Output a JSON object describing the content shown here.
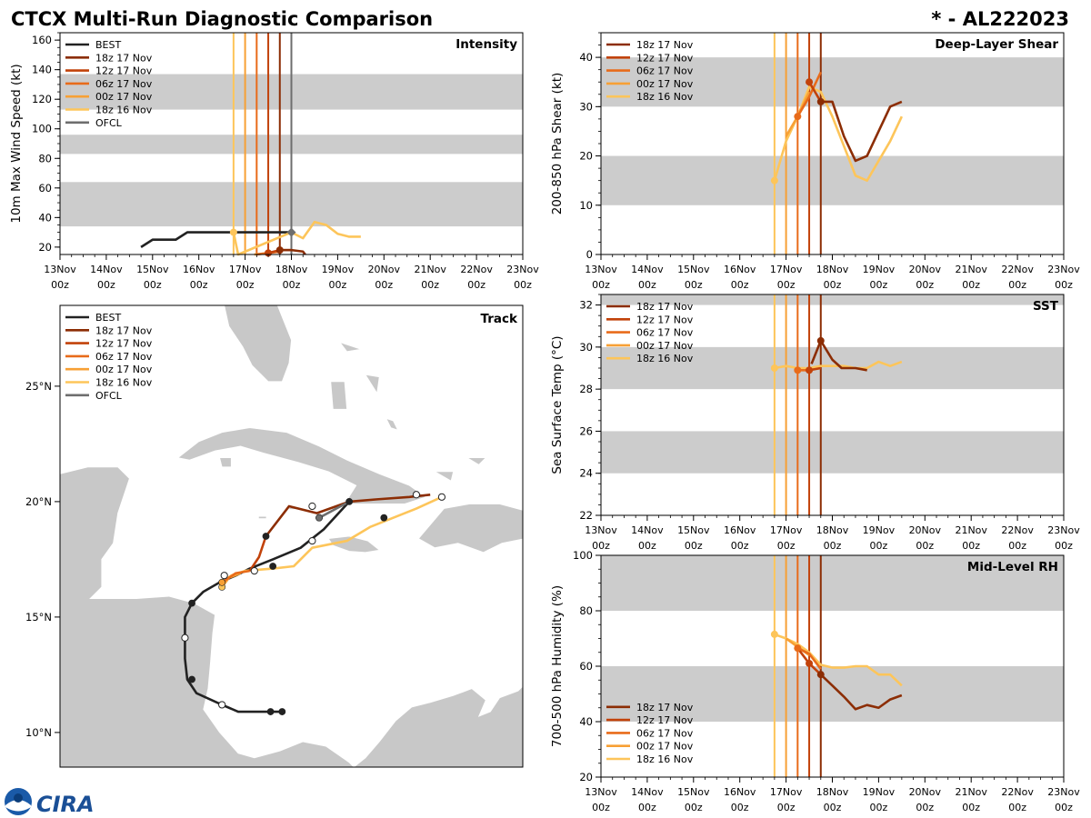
{
  "header": {
    "title": "CTCX Multi-Run Diagnostic Comparison",
    "storm_id": "* - AL222023"
  },
  "logo": {
    "text": "CIRA"
  },
  "colors": {
    "BEST": "#222222",
    "OFCL": "#6e6e6e",
    "18z 17 Nov": "#8c2d04",
    "12z 17 Nov": "#c2420a",
    "06z 17 Nov": "#e86b1a",
    "00z 17 Nov": "#f7a035",
    "18z 16 Nov": "#fdc55a",
    "band": "#cccccc"
  },
  "time_axis": {
    "range": [
      0,
      10
    ],
    "ticks": [
      {
        "v": 0,
        "l1": "13Nov",
        "l2": "00z"
      },
      {
        "v": 1,
        "l1": "14Nov",
        "l2": "00z"
      },
      {
        "v": 2,
        "l1": "15Nov",
        "l2": "00z"
      },
      {
        "v": 3,
        "l1": "16Nov",
        "l2": "00z"
      },
      {
        "v": 4,
        "l1": "17Nov",
        "l2": "00z"
      },
      {
        "v": 5,
        "l1": "18Nov",
        "l2": "00z"
      },
      {
        "v": 6,
        "l1": "19Nov",
        "l2": "00z"
      },
      {
        "v": 7,
        "l1": "20Nov",
        "l2": "00z"
      },
      {
        "v": 8,
        "l1": "21Nov",
        "l2": "00z"
      },
      {
        "v": 9,
        "l1": "22Nov",
        "l2": "00z"
      },
      {
        "v": 10,
        "l1": "23Nov",
        "l2": "00z"
      }
    ]
  },
  "chart_data": [
    {
      "id": "intensity",
      "type": "line",
      "title": "Intensity",
      "xlabel": "",
      "ylabel": "10m Max Wind Speed (kt)",
      "ylim": [
        15,
        165
      ],
      "yticks": [
        20,
        40,
        60,
        80,
        100,
        120,
        140,
        160
      ],
      "bands": [
        [
          34,
          64
        ],
        [
          83,
          96
        ],
        [
          113,
          137
        ]
      ],
      "legend": {
        "position": "top-left",
        "entries": [
          "BEST",
          "18z 17 Nov",
          "12z 17 Nov",
          "06z 17 Nov",
          "00z 17 Nov",
          "18z 16 Nov",
          "OFCL"
        ]
      },
      "vlines": [
        {
          "series": "18z 16 Nov",
          "x": 3.75
        },
        {
          "series": "00z 17 Nov",
          "x": 4.0
        },
        {
          "series": "06z 17 Nov",
          "x": 4.25
        },
        {
          "series": "12z 17 Nov",
          "x": 4.5
        },
        {
          "series": "18z 17 Nov",
          "x": 4.75
        },
        {
          "series": "OFCL",
          "x": 5.0
        }
      ],
      "series": [
        {
          "name": "BEST",
          "x": [
            1.75,
            2.0,
            2.25,
            2.5,
            2.75,
            3.0,
            3.25,
            3.5,
            3.75,
            4.0,
            4.25,
            4.5,
            4.75,
            5.0
          ],
          "y": [
            20,
            25,
            25,
            25,
            30,
            30,
            30,
            30,
            30,
            30,
            30,
            30,
            30,
            30
          ]
        },
        {
          "name": "18z 16 Nov",
          "x": [
            3.75,
            3.85,
            5.0,
            5.25,
            5.5,
            5.75,
            6.0,
            6.25,
            6.5
          ],
          "y": [
            30,
            15,
            30,
            26,
            37,
            35,
            29,
            27,
            27
          ]
        },
        {
          "name": "00z 17 Nov",
          "x": [
            4.2,
            4.5
          ],
          "y": [
            15,
            16
          ]
        },
        {
          "name": "06z 17 Nov",
          "x": [
            4.25,
            4.5,
            4.75
          ],
          "y": [
            15,
            16,
            17
          ]
        },
        {
          "name": "12z 17 Nov",
          "x": [
            4.5,
            4.75,
            5.0
          ],
          "y": [
            16,
            18,
            18
          ]
        },
        {
          "name": "18z 17 Nov",
          "x": [
            4.75,
            5.0,
            5.25,
            5.3
          ],
          "y": [
            18,
            18,
            17,
            15
          ]
        },
        {
          "name": "OFCL",
          "x": [
            5.0
          ],
          "y": [
            30
          ]
        }
      ],
      "markers": [
        {
          "series": "18z 16 Nov",
          "x": 3.75,
          "y": 30,
          "style": "filled"
        },
        {
          "series": "12z 17 Nov",
          "x": 4.5,
          "y": 16,
          "style": "filled"
        },
        {
          "series": "18z 17 Nov",
          "x": 4.75,
          "y": 18,
          "style": "filled"
        },
        {
          "series": "OFCL",
          "x": 5.0,
          "y": 30,
          "style": "diamond"
        }
      ]
    },
    {
      "id": "shear",
      "type": "line",
      "title": "Deep-Layer Shear",
      "xlabel": "",
      "ylabel": "200-850 hPa Shear (kt)",
      "ylim": [
        0,
        45
      ],
      "yticks": [
        0,
        10,
        20,
        30,
        40
      ],
      "bands": [
        [
          10,
          20
        ],
        [
          30,
          40
        ]
      ],
      "legend": {
        "position": "top-left",
        "entries": [
          "18z 17 Nov",
          "12z 17 Nov",
          "06z 17 Nov",
          "00z 17 Nov",
          "18z 16 Nov"
        ]
      },
      "vlines": [
        {
          "series": "18z 16 Nov",
          "x": 3.75
        },
        {
          "series": "00z 17 Nov",
          "x": 4.0
        },
        {
          "series": "06z 17 Nov",
          "x": 4.25
        },
        {
          "series": "12z 17 Nov",
          "x": 4.5
        },
        {
          "series": "18z 17 Nov",
          "x": 4.75
        }
      ],
      "series": [
        {
          "name": "18z 16 Nov",
          "x": [
            3.75,
            4.0,
            4.25,
            4.5,
            4.75,
            5.0,
            5.25,
            5.5,
            5.75,
            6.0,
            6.25,
            6.5
          ],
          "y": [
            15,
            23,
            28,
            34,
            33,
            28,
            22,
            16,
            15,
            19,
            23,
            28
          ]
        },
        {
          "name": "00z 17 Nov",
          "x": [
            4.0,
            4.25,
            4.5
          ],
          "y": [
            24,
            28,
            33
          ]
        },
        {
          "name": "06z 17 Nov",
          "x": [
            4.25,
            4.5,
            4.75
          ],
          "y": [
            28,
            32,
            37
          ]
        },
        {
          "name": "12z 17 Nov",
          "x": [
            4.5,
            4.75
          ],
          "y": [
            35,
            31
          ]
        },
        {
          "name": "18z 17 Nov",
          "x": [
            4.75,
            5.0,
            5.25,
            5.5,
            5.75,
            6.0,
            6.25,
            6.5
          ],
          "y": [
            31,
            31,
            24,
            19,
            20,
            25,
            30,
            31
          ]
        }
      ],
      "markers": [
        {
          "series": "18z 16 Nov",
          "x": 3.75,
          "y": 15,
          "style": "filled"
        },
        {
          "series": "06z 17 Nov",
          "x": 4.25,
          "y": 28,
          "style": "filled"
        },
        {
          "series": "12z 17 Nov",
          "x": 4.5,
          "y": 35,
          "style": "filled"
        },
        {
          "series": "18z 17 Nov",
          "x": 4.75,
          "y": 31,
          "style": "filled"
        }
      ]
    },
    {
      "id": "sst",
      "type": "line",
      "title": "SST",
      "xlabel": "",
      "ylabel": "Sea Surface Temp (°C)",
      "ylim": [
        22,
        32.5
      ],
      "yticks": [
        22,
        24,
        26,
        28,
        30,
        32
      ],
      "bands": [
        [
          24,
          26
        ],
        [
          28,
          30
        ],
        [
          32,
          33
        ]
      ],
      "legend": {
        "position": "top-left",
        "entries": [
          "18z 17 Nov",
          "12z 17 Nov",
          "06z 17 Nov",
          "00z 17 Nov",
          "18z 16 Nov"
        ]
      },
      "vlines": [
        {
          "series": "18z 16 Nov",
          "x": 3.75
        },
        {
          "series": "00z 17 Nov",
          "x": 4.0
        },
        {
          "series": "06z 17 Nov",
          "x": 4.25
        },
        {
          "series": "12z 17 Nov",
          "x": 4.5
        },
        {
          "series": "18z 17 Nov",
          "x": 4.75
        }
      ],
      "series": [
        {
          "name": "18z 16 Nov",
          "x": [
            3.75,
            4.0,
            4.25,
            4.5,
            4.75,
            5.0,
            5.25,
            5.5,
            5.75,
            6.0,
            6.25,
            6.5
          ],
          "y": [
            29.0,
            29.1,
            29.0,
            29.0,
            29.1,
            29.1,
            29.1,
            29.0,
            29.0,
            29.3,
            29.1,
            29.3
          ]
        },
        {
          "name": "06z 17 Nov",
          "x": [
            4.25,
            4.5
          ],
          "y": [
            28.9,
            28.9
          ]
        },
        {
          "name": "12z 17 Nov",
          "x": [
            4.5,
            4.75
          ],
          "y": [
            28.9,
            29.0
          ]
        },
        {
          "name": "18z 17 Nov",
          "x": [
            4.55,
            4.75,
            5.0,
            5.2,
            5.5,
            5.75
          ],
          "y": [
            29.2,
            30.3,
            29.4,
            29.0,
            29.0,
            28.9
          ]
        }
      ],
      "markers": [
        {
          "series": "18z 16 Nov",
          "x": 3.75,
          "y": 29.0,
          "style": "filled"
        },
        {
          "series": "06z 17 Nov",
          "x": 4.25,
          "y": 28.9,
          "style": "filled"
        },
        {
          "series": "12z 17 Nov",
          "x": 4.5,
          "y": 28.9,
          "style": "filled"
        },
        {
          "series": "18z 17 Nov",
          "x": 4.75,
          "y": 30.3,
          "style": "filled"
        }
      ]
    },
    {
      "id": "rh",
      "type": "line",
      "title": "Mid-Level RH",
      "xlabel": "",
      "ylabel": "700-500 hPa Humidity (%)",
      "ylim": [
        20,
        100
      ],
      "yticks": [
        20,
        40,
        60,
        80,
        100
      ],
      "bands": [
        [
          40,
          60
        ],
        [
          80,
          100
        ]
      ],
      "legend": {
        "position": "bottom-left",
        "entries": [
          "18z 17 Nov",
          "12z 17 Nov",
          "06z 17 Nov",
          "00z 17 Nov",
          "18z 16 Nov"
        ]
      },
      "vlines": [
        {
          "series": "18z 16 Nov",
          "x": 3.75
        },
        {
          "series": "00z 17 Nov",
          "x": 4.0
        },
        {
          "series": "06z 17 Nov",
          "x": 4.25
        },
        {
          "series": "12z 17 Nov",
          "x": 4.5
        },
        {
          "series": "18z 17 Nov",
          "x": 4.75
        }
      ],
      "series": [
        {
          "name": "18z 16 Nov",
          "x": [
            3.75,
            4.0,
            4.25,
            4.5,
            4.75,
            5.0,
            5.25,
            5.5,
            5.75,
            6.0,
            6.25,
            6.5
          ],
          "y": [
            71.5,
            70,
            68,
            65,
            60.5,
            59.5,
            59.5,
            60,
            60,
            57,
            57,
            53
          ]
        },
        {
          "name": "00z 17 Nov",
          "x": [
            4.0,
            4.25,
            4.5
          ],
          "y": [
            70,
            67,
            64
          ]
        },
        {
          "name": "06z 17 Nov",
          "x": [
            4.25,
            4.5,
            4.75
          ],
          "y": [
            66.5,
            64.5,
            59
          ]
        },
        {
          "name": "12z 17 Nov",
          "x": [
            4.25,
            4.5,
            4.75
          ],
          "y": [
            66.5,
            61,
            57
          ]
        },
        {
          "name": "18z 17 Nov",
          "x": [
            4.75,
            5.0,
            5.25,
            5.5,
            5.75,
            6.0,
            6.25,
            6.5
          ],
          "y": [
            57,
            53,
            49,
            44.5,
            46,
            45,
            48,
            49.5
          ]
        }
      ],
      "markers": [
        {
          "series": "18z 16 Nov",
          "x": 3.75,
          "y": 71.5,
          "style": "filled"
        },
        {
          "series": "06z 17 Nov",
          "x": 4.25,
          "y": 66.5,
          "style": "filled"
        },
        {
          "series": "12z 17 Nov",
          "x": 4.5,
          "y": 61,
          "style": "filled"
        },
        {
          "series": "18z 17 Nov",
          "x": 4.75,
          "y": 57,
          "style": "filled"
        }
      ]
    },
    {
      "id": "track",
      "type": "scatter",
      "title": "Track",
      "xlabel": "",
      "ylabel": "",
      "xlim": [
        -90,
        -70
      ],
      "ylim": [
        8.5,
        28.5
      ],
      "yticks": [
        {
          "v": 10,
          "l": "10°N"
        },
        {
          "v": 15,
          "l": "15°N"
        },
        {
          "v": 20,
          "l": "20°N"
        },
        {
          "v": 25,
          "l": "25°N"
        }
      ],
      "legend": {
        "position": "top-left",
        "entries": [
          "BEST",
          "18z 17 Nov",
          "12z 17 Nov",
          "06z 17 Nov",
          "00z 17 Nov",
          "18z 16 Nov",
          "OFCL"
        ]
      },
      "series": [
        {
          "name": "BEST",
          "lon": [
            -80.4,
            -80.9,
            -81.6,
            -82.3,
            -83.0,
            -84.1,
            -84.5,
            -84.6,
            -84.6,
            -84.6,
            -84.3,
            -83.8,
            -83.1,
            -82.4,
            -81.8,
            -80.8,
            -79.6,
            -78.6,
            -77.5
          ],
          "lat": [
            10.9,
            10.9,
            10.9,
            10.9,
            11.2,
            11.7,
            12.3,
            13.2,
            14.1,
            15.0,
            15.6,
            16.1,
            16.5,
            16.8,
            17.1,
            17.5,
            18.0,
            18.8,
            20.0
          ]
        },
        {
          "name": "18z 16 Nov",
          "lon": [
            -83.0,
            -82.6,
            -82.0,
            -80.8,
            -79.9,
            -79.1,
            -77.6,
            -76.6,
            -74.6,
            -73.5
          ],
          "lat": [
            16.5,
            16.8,
            17.0,
            17.1,
            17.2,
            18.0,
            18.3,
            18.9,
            19.7,
            20.2
          ]
        },
        {
          "name": "00z 17 Nov",
          "lon": [
            -83.0,
            -82.7,
            -82.2
          ],
          "lat": [
            16.3,
            16.7,
            16.9
          ]
        },
        {
          "name": "06z 17 Nov",
          "lon": [
            -83.0,
            -82.4,
            -81.8
          ],
          "lat": [
            16.5,
            16.9,
            17.0
          ]
        },
        {
          "name": "12z 17 Nov",
          "lon": [
            -81.8,
            -81.4,
            -81.1
          ],
          "lat": [
            17.0,
            17.6,
            18.5
          ]
        },
        {
          "name": "18z 17 Nov",
          "lon": [
            -81.1,
            -80.1,
            -78.9,
            -77.5,
            -76.3,
            -74.9,
            -74.0
          ],
          "lat": [
            18.5,
            19.8,
            19.5,
            20.0,
            20.1,
            20.2,
            20.3
          ]
        },
        {
          "name": "OFCL",
          "lon": [
            -78.8,
            -77.5
          ],
          "lat": [
            19.3,
            20.0
          ]
        }
      ],
      "markers": [
        {
          "series": "BEST",
          "lon": -80.4,
          "lat": 10.9,
          "style": "filled"
        },
        {
          "series": "BEST",
          "lon": -80.9,
          "lat": 10.9,
          "style": "filled"
        },
        {
          "series": "BEST",
          "lon": -83.0,
          "lat": 11.2,
          "style": "open"
        },
        {
          "series": "BEST",
          "lon": -84.3,
          "lat": 12.3,
          "style": "filled"
        },
        {
          "series": "BEST",
          "lon": -84.6,
          "lat": 14.1,
          "style": "open"
        },
        {
          "series": "BEST",
          "lon": -84.3,
          "lat": 15.6,
          "style": "filled"
        },
        {
          "series": "BEST",
          "lon": -82.9,
          "lat": 16.8,
          "style": "open"
        },
        {
          "series": "BEST",
          "lon": -81.6,
          "lat": 17.0,
          "style": "open"
        },
        {
          "series": "18z 16 Nov",
          "lon": -83.0,
          "lat": 16.3,
          "style": "filled"
        },
        {
          "series": "00z 17 Nov",
          "lon": -83.0,
          "lat": 16.5,
          "style": "filled"
        },
        {
          "series": "BEST",
          "lon": -80.8,
          "lat": 17.2,
          "style": "filled"
        },
        {
          "series": "BEST",
          "lon": -81.1,
          "lat": 18.5,
          "style": "filled"
        },
        {
          "series": "BEST",
          "lon": -79.1,
          "lat": 19.8,
          "style": "open"
        },
        {
          "series": "BEST",
          "lon": -77.5,
          "lat": 20.0,
          "style": "filled"
        },
        {
          "series": "BEST",
          "lon": -78.8,
          "lat": 19.3,
          "style": "filled"
        },
        {
          "series": "BEST",
          "lon": -79.1,
          "lat": 18.3,
          "style": "open"
        },
        {
          "series": "BEST",
          "lon": -76.0,
          "lat": 19.3,
          "style": "filled"
        },
        {
          "series": "BEST",
          "lon": -74.6,
          "lat": 20.3,
          "style": "open"
        },
        {
          "series": "BEST",
          "lon": -73.5,
          "lat": 20.2,
          "style": "open"
        },
        {
          "series": "OFCL",
          "lon": -78.8,
          "lat": 19.3,
          "style": "gray"
        }
      ]
    }
  ]
}
